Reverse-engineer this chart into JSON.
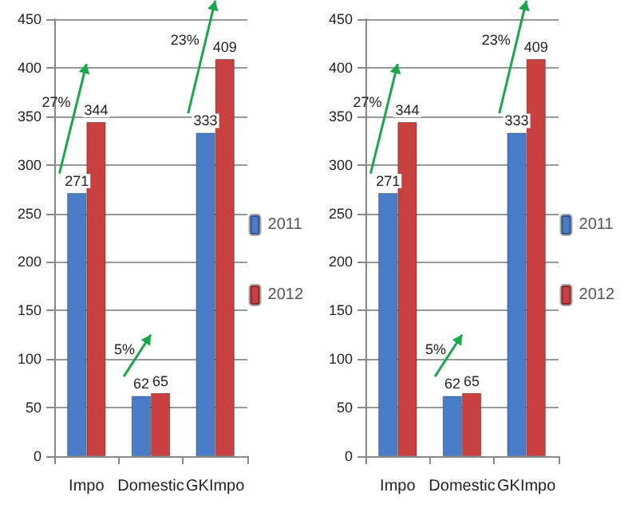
{
  "chart_data": [
    {
      "type": "bar",
      "categories": [
        "Impo",
        "Domestic",
        "GKImpo"
      ],
      "series": [
        {
          "name": "2011",
          "color": "#4a7cc7",
          "values": [
            271,
            62,
            333
          ]
        },
        {
          "name": "2012",
          "color": "#c8403f",
          "values": [
            344,
            65,
            409
          ]
        }
      ],
      "ylim": [
        0,
        450
      ],
      "yticks": [
        0,
        50,
        100,
        150,
        200,
        250,
        300,
        350,
        400,
        450
      ],
      "grid": "y",
      "legend": "right",
      "data_labels": true,
      "annotations": [
        "27%",
        "5%",
        "23%"
      ]
    },
    {
      "type": "bar",
      "categories": [
        "Impo",
        "Domestic",
        "GKImpo"
      ],
      "series": [
        {
          "name": "2011",
          "color": "#4a7cc7",
          "values": [
            271,
            62,
            333
          ]
        },
        {
          "name": "2012",
          "color": "#c8403f",
          "values": [
            344,
            65,
            409
          ]
        }
      ],
      "ylim": [
        0,
        450
      ],
      "yticks": [
        0,
        50,
        100,
        150,
        200,
        250,
        300,
        350,
        400,
        450
      ],
      "grid": "y",
      "legend": "right",
      "data_labels": true,
      "annotations": [
        "27%",
        "5%",
        "23%"
      ]
    }
  ]
}
